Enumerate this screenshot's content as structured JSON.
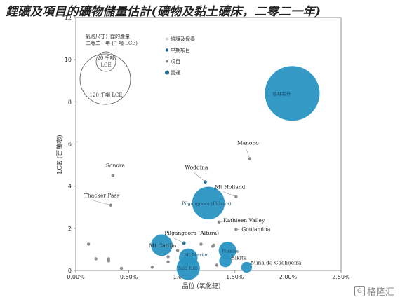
{
  "title": "鋰礦及項目的礦物儲量估計(礦物及黏土礦床，二零二一年)",
  "watermark": "格隆汇",
  "colors": {
    "bubble": "#2a93c3",
    "smalldot": "#8c8c8c",
    "darkdot": "#1d6f96"
  },
  "chart_data": {
    "type": "scatter",
    "xlabel": "品位 (氧化鋰)",
    "ylabel": "LCE (百萬噸)",
    "xlim": [
      0,
      0.025
    ],
    "ylim": [
      0,
      12
    ],
    "xticks": [
      "0.00%",
      "0.50%",
      "1.00%",
      "1.50%",
      "2.00%",
      "2.50%"
    ],
    "yticks": [
      "0",
      "2",
      "4",
      "6",
      "8",
      "10",
      "12"
    ],
    "size_legend": {
      "title_lines": [
        "氣泡尺寸：鋰的產量",
        "二零二一年 (千噸 LCE)"
      ],
      "small": "20 千噸 LCE",
      "large": "120 千噸 LCE"
    },
    "legend": [
      "維護及保養",
      "早期項目",
      "項目",
      "營運"
    ],
    "points": [
      {
        "name": "格林布什",
        "x": 0.0204,
        "y": 8.4,
        "size": 155,
        "cat": "營運"
      },
      {
        "name": "Manono",
        "x": 0.0164,
        "y": 5.3,
        "size": 0,
        "cat": "項目"
      },
      {
        "name": "Sonora",
        "x": 0.0035,
        "y": 4.5,
        "size": 0,
        "cat": "項目"
      },
      {
        "name": "Wodgina",
        "x": 0.0122,
        "y": 4.2,
        "size": 0,
        "cat": "維護及保養"
      },
      {
        "name": "Mt Holland",
        "x": 0.0151,
        "y": 3.5,
        "size": 0,
        "cat": "項目"
      },
      {
        "name": "Thacker Pass",
        "x": 0.0033,
        "y": 3.1,
        "size": 0,
        "cat": "項目"
      },
      {
        "name": "Pilgangoora (Pilbara)",
        "x": 0.0125,
        "y": 3.2,
        "size": 55,
        "cat": "營運"
      },
      {
        "name": "Kathleen Valley",
        "x": 0.0135,
        "y": 2.3,
        "size": 0,
        "cat": "項目"
      },
      {
        "name": "Goulamina",
        "x": 0.0151,
        "y": 1.95,
        "size": 0,
        "cat": "項目"
      },
      {
        "name": "Pilgangoora (Altura)",
        "x": 0.0102,
        "y": 1.3,
        "size": 0,
        "cat": "維護及保養"
      },
      {
        "name": "Mt Cattlin",
        "x": 0.0081,
        "y": 1.2,
        "size": 24,
        "cat": "營運"
      },
      {
        "name": "Mt Marion",
        "x": 0.0106,
        "y": 0.6,
        "size": 18,
        "cat": "營運"
      },
      {
        "name": "Bald Hill",
        "x": 0.0106,
        "y": 0.1,
        "size": 28,
        "cat": "營運"
      },
      {
        "name": "Finniss",
        "x": 0.0143,
        "y": 0.95,
        "size": 16,
        "cat": "營運"
      },
      {
        "name": "Bikita",
        "x": 0.0141,
        "y": 0.45,
        "size": 8,
        "cat": "營運"
      },
      {
        "name": "Mina da Cachoeira",
        "x": 0.0161,
        "y": 0.15,
        "size": 6,
        "cat": "營運"
      },
      {
        "name": "",
        "x": 0.0012,
        "y": 1.25,
        "size": 0,
        "cat": "項目"
      },
      {
        "name": "",
        "x": 0.0019,
        "y": 0.55,
        "size": 0,
        "cat": "項目"
      },
      {
        "name": "",
        "x": 0.0031,
        "y": 0.55,
        "size": 0,
        "cat": "項目"
      },
      {
        "name": "",
        "x": 0.0031,
        "y": 0.45,
        "size": 0,
        "cat": "項目"
      },
      {
        "name": "",
        "x": 0.0043,
        "y": 0.1,
        "size": 0,
        "cat": "項目"
      },
      {
        "name": "",
        "x": 0.0072,
        "y": 0.15,
        "size": 0,
        "cat": "項目"
      },
      {
        "name": "",
        "x": 0.0087,
        "y": 0.65,
        "size": 0,
        "cat": "項目"
      },
      {
        "name": "",
        "x": 0.0087,
        "y": 0.4,
        "size": 0,
        "cat": "項目"
      },
      {
        "name": "",
        "x": 0.0096,
        "y": 0.95,
        "size": 0,
        "cat": "項目"
      },
      {
        "name": "",
        "x": 0.0118,
        "y": 1.25,
        "size": 0,
        "cat": "項目"
      },
      {
        "name": "",
        "x": 0.0129,
        "y": 1.15,
        "size": 0,
        "cat": "項目"
      },
      {
        "name": "",
        "x": 0.013,
        "y": 1.2,
        "size": 0,
        "cat": "項目"
      },
      {
        "name": "",
        "x": 0.0133,
        "y": 0.25,
        "size": 0,
        "cat": "項目"
      }
    ]
  }
}
